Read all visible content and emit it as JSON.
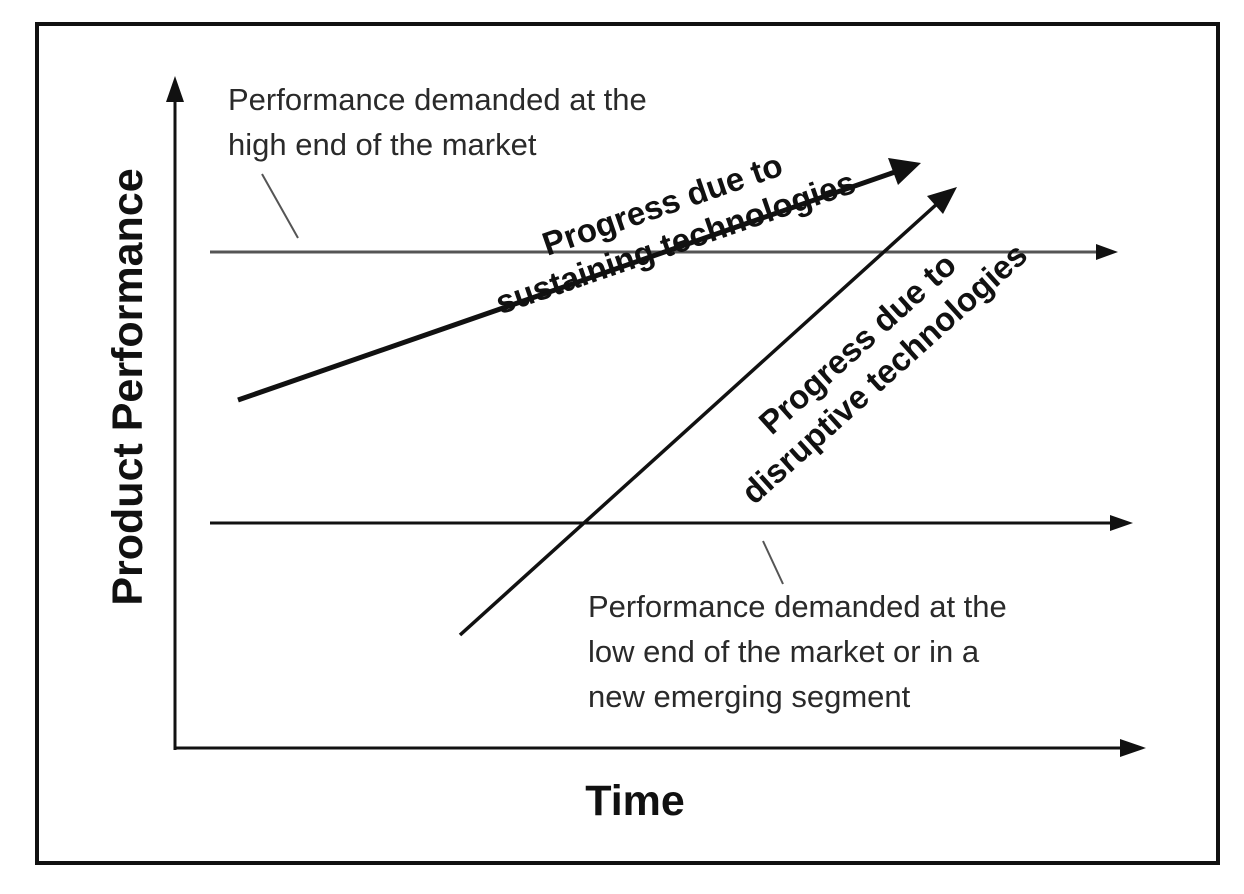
{
  "axes": {
    "y_label": "Product Performance",
    "x_label": "Time"
  },
  "annotations": {
    "high_end": {
      "line1": "Performance demanded at the",
      "line2": "high end of the market"
    },
    "low_end": {
      "line1": "Performance demanded at the",
      "line2": "low end of the market or in a",
      "line3": "new emerging segment"
    }
  },
  "trajectories": {
    "sustaining": {
      "line1": "Progress due to",
      "line2": "sustaining technologies"
    },
    "disruptive": {
      "line1": "Progress due to",
      "line2": "disruptive technologies"
    }
  },
  "colors": {
    "ink": "#111111",
    "frame": "#111111",
    "guide": "#555555",
    "background": "#ffffff"
  }
}
